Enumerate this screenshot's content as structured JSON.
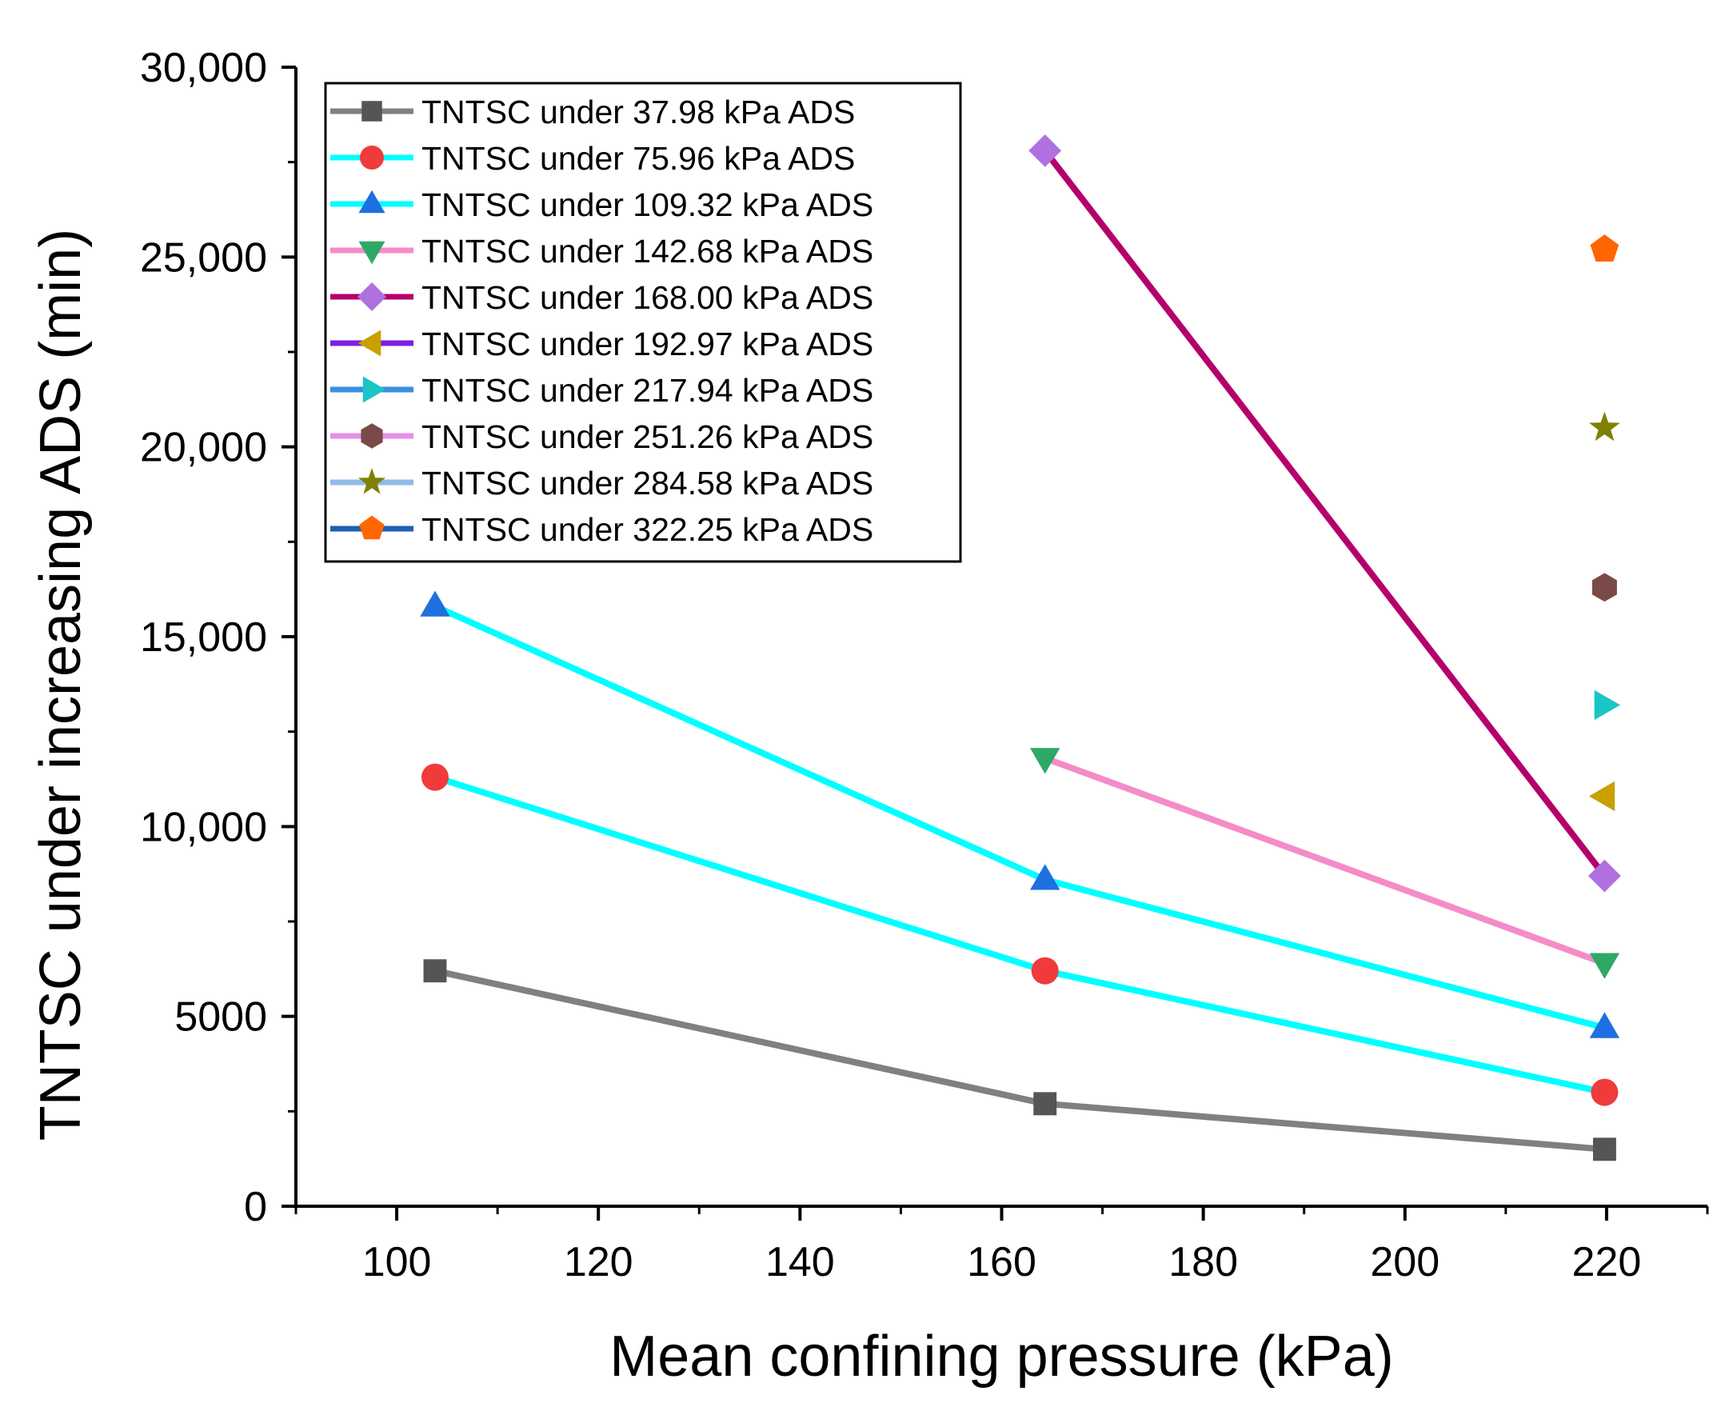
{
  "chart_data": {
    "type": "line",
    "title": "",
    "xlabel": "Mean confining pressure (kPa)",
    "ylabel": "TNTSC under increasing ADS (min)",
    "xlim": [
      90,
      230
    ],
    "ylim": [
      0,
      30000
    ],
    "x_ticks": [
      100,
      120,
      140,
      160,
      180,
      200,
      220
    ],
    "x_tick_labels": [
      "100",
      "120",
      "140",
      "160",
      "180",
      "200",
      "220"
    ],
    "y_ticks": [
      0,
      5000,
      10000,
      15000,
      20000,
      25000,
      30000
    ],
    "y_tick_labels": [
      "0",
      "5000",
      "10,000",
      "15,000",
      "20,000",
      "25,000",
      "30,000"
    ],
    "grid": false,
    "legend_position": "top-left",
    "series": [
      {
        "name": "TNTSC under 37.98 kPa ADS",
        "line_color": "#808080",
        "marker": "square",
        "marker_color": "#555555",
        "x": [
          103.8,
          164.3,
          219.8
        ],
        "y": [
          6200,
          2700,
          1500
        ]
      },
      {
        "name": "TNTSC under 75.96 kPa ADS",
        "line_color": "#00ffff",
        "marker": "circle",
        "marker_color": "#ef3b3b",
        "x": [
          103.8,
          164.3,
          219.8
        ],
        "y": [
          11300,
          6200,
          3000
        ]
      },
      {
        "name": "TNTSC under 109.32 kPa ADS",
        "line_color": "#00ffff",
        "marker": "triangle-up",
        "marker_color": "#1e6fe0",
        "x": [
          103.8,
          164.3,
          219.8
        ],
        "y": [
          15800,
          8600,
          4700
        ]
      },
      {
        "name": "TNTSC under 142.68 kPa ADS",
        "line_color": "#f48cc8",
        "marker": "triangle-down",
        "marker_color": "#2ea866",
        "x": [
          164.3,
          219.8
        ],
        "y": [
          11800,
          6400
        ]
      },
      {
        "name": "TNTSC under 168.00 kPa ADS",
        "line_color": "#b5006b",
        "marker": "diamond",
        "marker_color": "#b070e0",
        "x": [
          164.3,
          219.8
        ],
        "y": [
          27800,
          8700
        ]
      },
      {
        "name": "TNTSC under 192.97 kPa ADS",
        "line_color": "#7a1fe0",
        "marker": "triangle-left",
        "marker_color": "#c8a000",
        "x": [
          219.8
        ],
        "y": [
          10800
        ]
      },
      {
        "name": "TNTSC under 217.94 kPa ADS",
        "line_color": "#3a8fe0",
        "marker": "triangle-right",
        "marker_color": "#19c5c5",
        "x": [
          219.8
        ],
        "y": [
          13200
        ]
      },
      {
        "name": "TNTSC  under 251.26 kPa ADS",
        "line_color": "#e68fe6",
        "marker": "hexagon",
        "marker_color": "#7a4a48",
        "x": [
          219.8
        ],
        "y": [
          16300
        ]
      },
      {
        "name": "TNTSC under 284.58 kPa ADS",
        "line_color": "#8fbbe6",
        "marker": "star",
        "marker_color": "#808000",
        "x": [
          219.8
        ],
        "y": [
          20500
        ]
      },
      {
        "name": "TNTSC under 322.25 kPa ADS",
        "line_color": "#1f5fb5",
        "marker": "pentagon",
        "marker_color": "#ff6600",
        "x": [
          219.8
        ],
        "y": [
          25200
        ]
      }
    ]
  }
}
